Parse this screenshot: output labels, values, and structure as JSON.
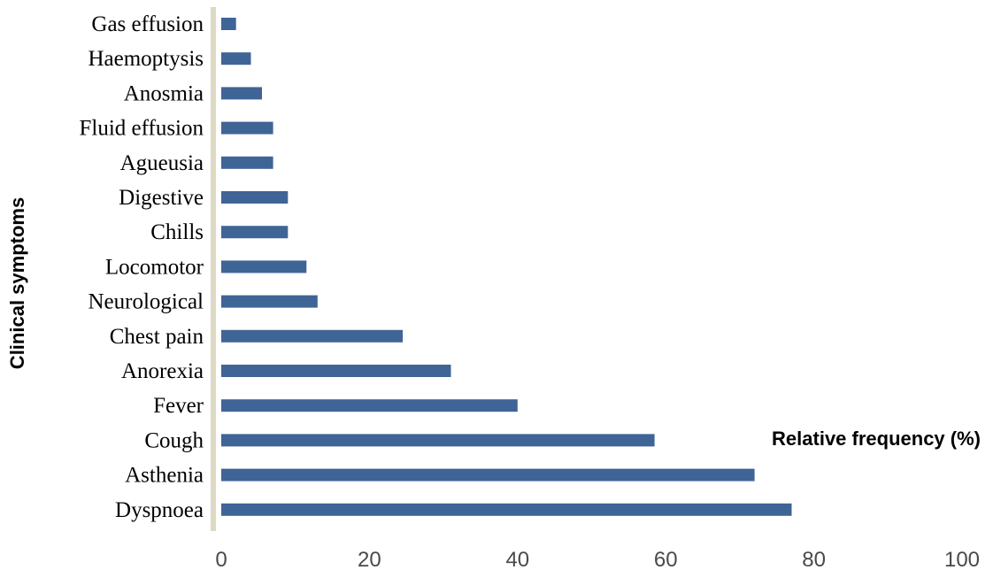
{
  "chart_data": {
    "type": "bar",
    "orientation": "horizontal",
    "categories": [
      "Dyspnoea",
      "Asthenia",
      "Cough",
      "Fever",
      "Anorexia",
      "Chest pain",
      "Neurological",
      "Locomotor",
      "Chills",
      "Digestive",
      "Agueusia",
      "Fluid effusion",
      "Anosmia",
      "Haemoptysis",
      "Gas effusion"
    ],
    "values": [
      77,
      72,
      58.5,
      40,
      31,
      24.5,
      13,
      11.5,
      9,
      9,
      7,
      7,
      5.5,
      4,
      2
    ],
    "xlabel": "Relative frequency (%)",
    "ylabel": "Clinical symptoms",
    "xlim": [
      0,
      100
    ],
    "xticks": [
      "0",
      "20",
      "40",
      "60",
      "80",
      "100"
    ],
    "bar_color": "#3f6496",
    "axis_color": "#ddd9c3",
    "grid": false,
    "legend": "none"
  }
}
